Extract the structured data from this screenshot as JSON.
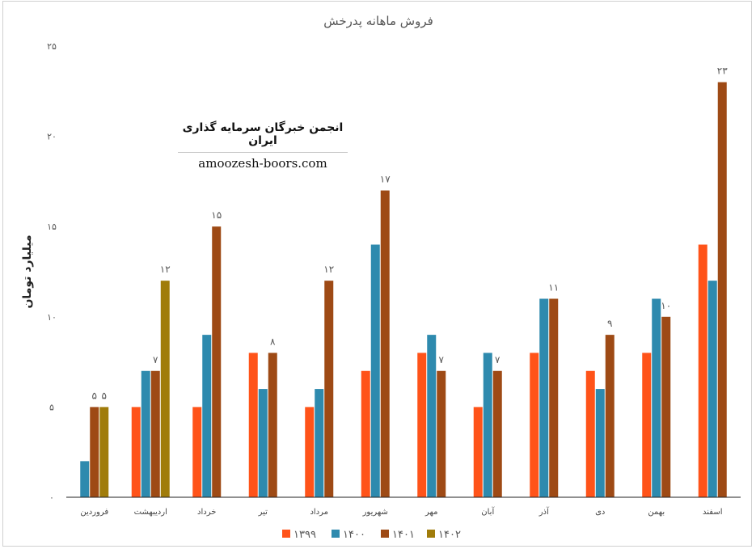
{
  "chart_data": {
    "type": "bar",
    "title": "فروش ماهانه پدرخش",
    "ylabel": "میلیارد تومان",
    "xlabel": "",
    "ylim": [
      0,
      25
    ],
    "yticks": [
      0,
      5,
      10,
      15,
      20,
      25
    ],
    "ytick_labels": [
      "۰",
      "۵",
      "۱۰",
      "۱۵",
      "۲۰",
      "۲۵"
    ],
    "grid": false,
    "legend_position": "bottom",
    "categories": [
      "فروردین",
      "اردیبهشت",
      "خرداد",
      "تیر",
      "مرداد",
      "شهریور",
      "مهر",
      "آبان",
      "آذر",
      "دی",
      "بهمن",
      "اسفند"
    ],
    "series": [
      {
        "name": "۱۳۹۹",
        "color": "#FF5319",
        "values": [
          null,
          5,
          5,
          8,
          5,
          7,
          8,
          5,
          8,
          7,
          8,
          14
        ]
      },
      {
        "name": "۱۴۰۰",
        "color": "#2E8AAE",
        "values": [
          2,
          7,
          9,
          6,
          6,
          14,
          9,
          8,
          11,
          6,
          11,
          12
        ]
      },
      {
        "name": "۱۴۰۱",
        "color": "#9E4A15",
        "values": [
          5,
          7,
          15,
          8,
          12,
          17,
          7,
          7,
          11,
          9,
          10,
          23
        ]
      },
      {
        "name": "۱۴۰۲",
        "color": "#A07C0A",
        "values": [
          5,
          12,
          null,
          null,
          null,
          null,
          null,
          null,
          null,
          null,
          null,
          null
        ]
      }
    ],
    "data_labels": [
      {
        "category": "فروردین",
        "series": "۱۴۰۱",
        "text": "۵"
      },
      {
        "category": "فروردین",
        "series": "۱۴۰۲",
        "text": "۵"
      },
      {
        "category": "اردیبهشت",
        "series": "۱۴۰۱",
        "text": "۷"
      },
      {
        "category": "اردیبهشت",
        "series": "۱۴۰۲",
        "text": "۱۲"
      },
      {
        "category": "خرداد",
        "series": "۱۴۰۱",
        "text": "۱۵"
      },
      {
        "category": "تیر",
        "series": "۱۴۰۱",
        "text": "۸"
      },
      {
        "category": "مرداد",
        "series": "۱۴۰۱",
        "text": "۱۲"
      },
      {
        "category": "شهریور",
        "series": "۱۴۰۱",
        "text": "۱۷"
      },
      {
        "category": "مهر",
        "series": "۱۴۰۱",
        "text": "۷"
      },
      {
        "category": "آبان",
        "series": "۱۴۰۱",
        "text": "۷"
      },
      {
        "category": "آذر",
        "series": "۱۴۰۱",
        "text": "۱۱"
      },
      {
        "category": "دی",
        "series": "۱۴۰۱",
        "text": "۹"
      },
      {
        "category": "بهمن",
        "series": "۱۴۰۱",
        "text": "۱۰"
      },
      {
        "category": "اسفند",
        "series": "۱۴۰۱",
        "text": "۲۳"
      }
    ]
  },
  "watermark": {
    "title": "انجمن خبرگان سرمایه گذاری ایران",
    "url": "amoozesh-boors.com"
  }
}
